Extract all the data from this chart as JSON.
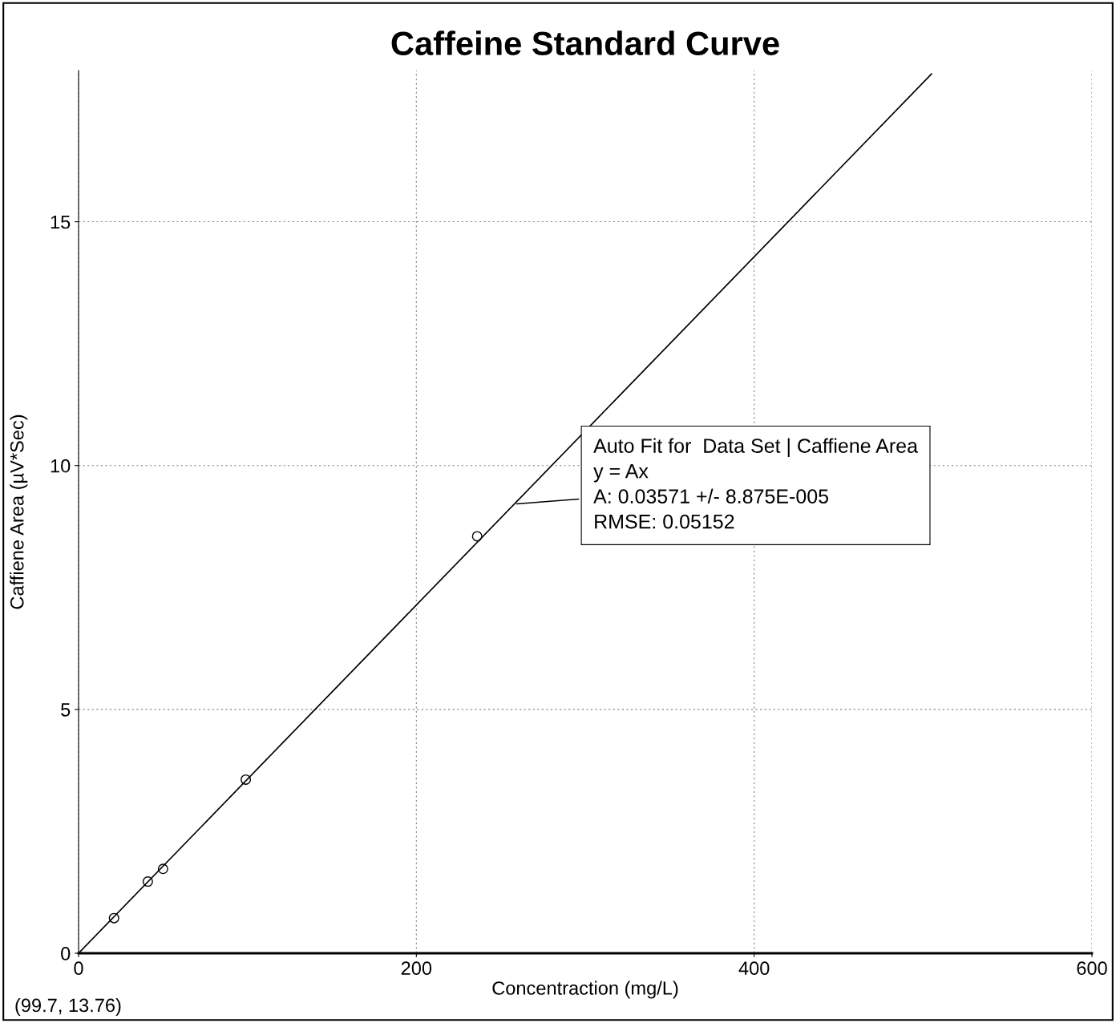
{
  "chart_data": {
    "type": "scatter",
    "title": "Caffeine Standard Curve",
    "xlabel": "Concentraction (mg/L)",
    "ylabel": "Caffiene Area (µV*Sec)",
    "xlim": [
      0,
      600
    ],
    "xticks": [
      0,
      200,
      400,
      600
    ],
    "ylim": [
      0,
      18.1
    ],
    "yticks": [
      0,
      5,
      10,
      15
    ],
    "grid": true,
    "legend": false,
    "series": [
      {
        "color": "#000000",
        "marker": "circle",
        "x": [
          21,
          41,
          50,
          99,
          236
        ],
        "values": [
          0.72,
          1.47,
          1.73,
          3.56,
          8.55
        ]
      },
      {
        "type": "line",
        "color": "#000000",
        "marker": "none",
        "line_style": "solid",
        "x": [
          0,
          505
        ],
        "values": [
          0,
          18.03
        ]
      }
    ],
    "annotations": [
      {
        "text": "Auto Fit for  Data Set | Caffiene Area\ny = Ax\nA: 0.03571 +/- 8.875E-005\nRMSE: 0.05152",
        "x": 258,
        "y": 9.21
      },
      "(99.7, 13.76)"
    ]
  }
}
